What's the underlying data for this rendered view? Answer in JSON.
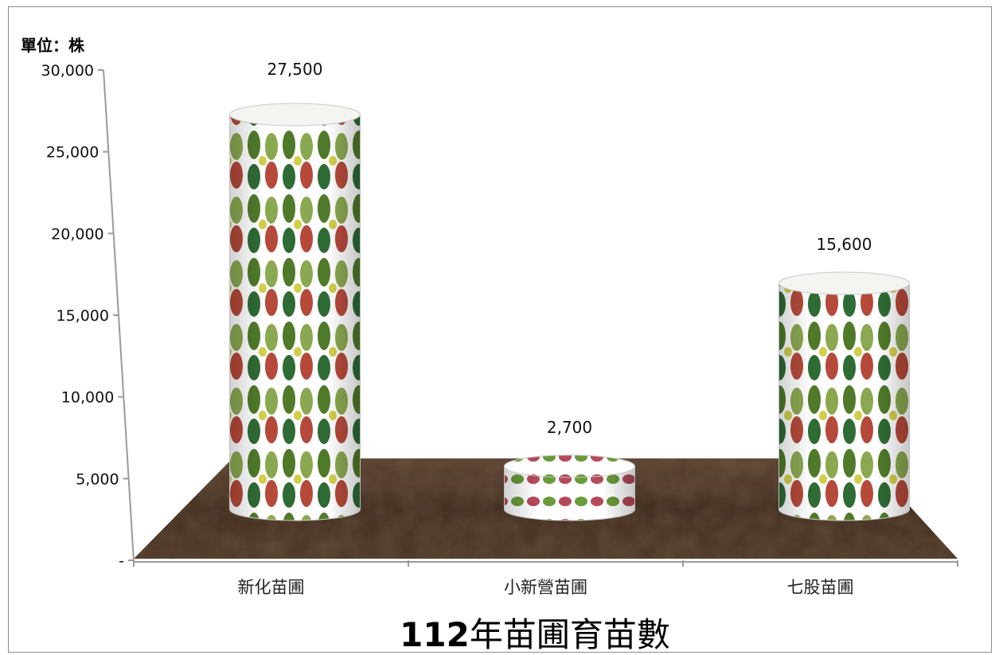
{
  "chart_data": {
    "type": "bar",
    "title_bold": "112",
    "title_rest": "年苗圃育苗數",
    "unit_label": "單位：株",
    "categories": [
      "新化苗圃",
      "小新營苗圃",
      "七股苗圃"
    ],
    "values": [
      27500,
      2700,
      15600
    ],
    "data_labels": [
      "27,500",
      "2,700",
      "15,600"
    ],
    "ylim": [
      0,
      30000
    ],
    "y_ticks": [
      0,
      5000,
      10000,
      15000,
      20000,
      25000,
      30000
    ],
    "y_tick_labels": [
      "-",
      "5,000",
      "10,000",
      "15,000",
      "20,000",
      "25,000",
      "30,000"
    ],
    "bar_style": "3d-cylinder",
    "floor_color": "#4a3322",
    "grid": false,
    "legend": "none"
  }
}
